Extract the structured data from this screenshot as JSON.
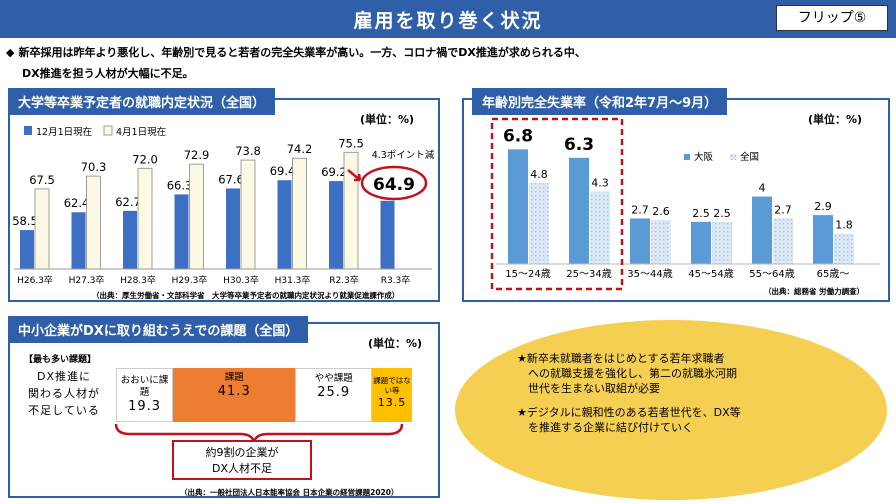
{
  "header": {
    "title": "雇用を取り巻く状況",
    "flip_label": "フリップ⑤"
  },
  "lead": {
    "bullet": "◆",
    "line1": "新卒採用は昨年より悪化し、年齢別で見ると若者の完全失業率が高い。一方、コロナ禍でDX推進が求められる中、",
    "line2": "DX推進を担う人材が大幅に不足。"
  },
  "colors": {
    "header_blue": "#2e5fa8",
    "bar_blue": "#3d6fc4",
    "bar_cream": "#fbf9e4",
    "highlight_red": "#c0121c",
    "segment_orange": "#ed7d31",
    "segment_gold": "#ffc000",
    "ellipse_yellow": "#f5cf52",
    "osaka_blue": "#5b9bd5",
    "national_dotted": "#bdd7ee"
  },
  "panel1": {
    "title": "大学等卒業予定者の就職内定状況（全国）",
    "unit": "(単位：%)",
    "source": "（出典：厚生労働省・文部科学省　大学等卒業予定者の就職内定状況より就業促進課作成）",
    "change_note": "4.3ポイント減"
  },
  "panel2": {
    "title": "年齢別完全失業率（令和2年7月～9月）",
    "unit": "(単位：%)",
    "source": "（出典：総務省 労働力調査）"
  },
  "panel3": {
    "title": "中小企業がDXに取り組むうえでの課題（全国）",
    "unit": "(単位：%)",
    "source": "（出典：一般社団法人日本能率協会 日本企業の経営課題2020）",
    "most_label": "【最も多い課題】",
    "question": "DX推進に\n関わる人材が\n不足している",
    "callout": "約9割の企業が\nDX人材不足"
  },
  "ellipse": {
    "item1": "★新卒未就職者をはじめとする若年求職者\n　への就職支援を強化し、第二の就職氷河期\n　世代を生まない取組が必要",
    "item2": "★デジタルに親和性のある若者世代を、DX等\n　を推進する企業に結び付けていく"
  },
  "chart_data": [
    {
      "type": "bar",
      "categories": [
        "H26.3卒",
        "H27.3卒",
        "H28.3卒",
        "H29.3卒",
        "H30.3卒",
        "H31.3卒",
        "R2.3卒",
        "R3.3卒"
      ],
      "series": [
        {
          "name": "12月1日現在",
          "values": [
            58.5,
            62.4,
            62.7,
            66.3,
            67.6,
            69.4,
            69.2,
            64.9
          ]
        },
        {
          "name": "4月1日現在",
          "values": [
            67.5,
            70.3,
            72.0,
            72.9,
            73.8,
            74.2,
            75.5,
            null
          ]
        }
      ],
      "title": "大学等卒業予定者の就職内定状況（全国）",
      "legend": "top-left",
      "grid": false
    },
    {
      "type": "bar",
      "categories": [
        "15～24歳",
        "25～34歳",
        "35～44歳",
        "45～54歳",
        "55～64歳",
        "65歳～"
      ],
      "series": [
        {
          "name": "大阪",
          "values": [
            6.8,
            6.3,
            2.7,
            2.5,
            4,
            2.9
          ]
        },
        {
          "name": "全国",
          "values": [
            4.8,
            4.3,
            2.6,
            2.5,
            2.7,
            1.8
          ]
        }
      ],
      "title": "年齢別完全失業率（令和2年7月～9月）",
      "legend": "top-right",
      "grid": false
    },
    {
      "type": "bar",
      "orientation": "horizontal-stacked",
      "categories": [
        "DX推進に関わる人材が不足している"
      ],
      "series": [
        {
          "name": "おおいに課題",
          "values": [
            19.3
          ]
        },
        {
          "name": "課題",
          "values": [
            41.3
          ]
        },
        {
          "name": "やや課題",
          "values": [
            25.9
          ]
        },
        {
          "name": "課題ではない等",
          "values": [
            13.5
          ]
        }
      ],
      "title": "中小企業がDXに取り組むうえでの課題（全国）"
    }
  ]
}
